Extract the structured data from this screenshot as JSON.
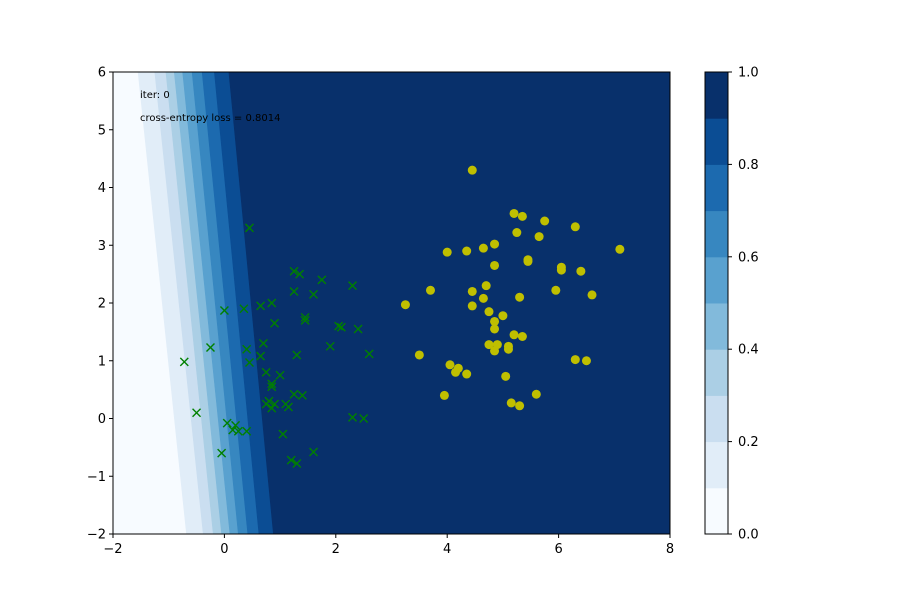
{
  "chart_data": {
    "type": "scatter",
    "xlim": [
      -2,
      8
    ],
    "ylim": [
      -2,
      6
    ],
    "xticks": [
      "−2",
      "0",
      "2",
      "4",
      "6",
      "8"
    ],
    "yticks": [
      "−2",
      "−1",
      "0",
      "1",
      "2",
      "3",
      "4",
      "5",
      "6"
    ],
    "annotations": {
      "iter": "iter: 0",
      "loss": "cross-entropy loss = 0.8014"
    },
    "contour": {
      "type": "filled-contour",
      "levels": [
        0.0,
        0.1,
        0.2,
        0.3,
        0.4,
        0.5,
        0.6,
        0.7,
        0.8,
        0.9,
        1.0
      ],
      "colors": [
        "#f7fbff",
        "#e1edf8",
        "#cadef0",
        "#abcfe5",
        "#82badb",
        "#59a1cf",
        "#3787c0",
        "#1c6aaf",
        "#0b4d94",
        "#08306b"
      ],
      "boundary_lines": [
        {
          "level": 0.1,
          "y_min_x": -0.68,
          "y_max_x": -1.55
        },
        {
          "level": 0.2,
          "y_min_x": -0.38,
          "y_max_x": -1.25
        },
        {
          "level": 0.3,
          "y_min_x": -0.2,
          "y_max_x": -1.05
        },
        {
          "level": 0.4,
          "y_min_x": -0.05,
          "y_max_x": -0.9
        },
        {
          "level": 0.5,
          "y_min_x": 0.1,
          "y_max_x": -0.75
        },
        {
          "level": 0.6,
          "y_min_x": 0.25,
          "y_max_x": -0.58
        },
        {
          "level": 0.7,
          "y_min_x": 0.42,
          "y_max_x": -0.4
        },
        {
          "level": 0.8,
          "y_min_x": 0.62,
          "y_max_x": -0.18
        },
        {
          "level": 0.9,
          "y_min_x": 0.88,
          "y_max_x": 0.08
        }
      ]
    },
    "colorbar": {
      "range": [
        0,
        1
      ],
      "ticks": [
        "0.0",
        "0.2",
        "0.4",
        "0.6",
        "0.8",
        "1.0"
      ]
    },
    "series": [
      {
        "marker": "x",
        "color": "#008000",
        "points": [
          [
            0.45,
            3.3
          ],
          [
            1.25,
            2.55
          ],
          [
            1.35,
            2.5
          ],
          [
            1.75,
            2.4
          ],
          [
            1.25,
            2.2
          ],
          [
            1.6,
            2.15
          ],
          [
            2.3,
            2.3
          ],
          [
            0.85,
            2.0
          ],
          [
            0.65,
            1.95
          ],
          [
            0.35,
            1.9
          ],
          [
            0.0,
            1.87
          ],
          [
            1.45,
            1.75
          ],
          [
            1.45,
            1.7
          ],
          [
            0.9,
            1.65
          ],
          [
            2.05,
            1.6
          ],
          [
            2.1,
            1.58
          ],
          [
            2.4,
            1.55
          ],
          [
            0.7,
            1.3
          ],
          [
            1.9,
            1.25
          ],
          [
            0.4,
            1.2
          ],
          [
            -0.25,
            1.23
          ],
          [
            1.3,
            1.1
          ],
          [
            0.65,
            1.08
          ],
          [
            2.6,
            1.12
          ],
          [
            0.45,
            0.97
          ],
          [
            -0.72,
            0.98
          ],
          [
            1.0,
            0.75
          ],
          [
            0.75,
            0.8
          ],
          [
            0.85,
            0.6
          ],
          [
            0.85,
            0.55
          ],
          [
            1.25,
            0.42
          ],
          [
            1.4,
            0.4
          ],
          [
            0.8,
            0.3
          ],
          [
            0.75,
            0.25
          ],
          [
            0.9,
            0.25
          ],
          [
            1.1,
            0.25
          ],
          [
            1.15,
            0.2
          ],
          [
            0.85,
            0.18
          ],
          [
            -0.5,
            0.1
          ],
          [
            2.3,
            0.02
          ],
          [
            2.5,
            0.0
          ],
          [
            0.05,
            -0.08
          ],
          [
            0.2,
            -0.12
          ],
          [
            0.15,
            -0.2
          ],
          [
            0.25,
            -0.22
          ],
          [
            0.4,
            -0.22
          ],
          [
            1.05,
            -0.27
          ],
          [
            1.6,
            -0.58
          ],
          [
            -0.05,
            -0.6
          ],
          [
            1.2,
            -0.72
          ],
          [
            1.3,
            -0.78
          ]
        ]
      },
      {
        "marker": "o",
        "color": "#bfbf00",
        "points": [
          [
            4.45,
            4.3
          ],
          [
            5.2,
            3.55
          ],
          [
            5.35,
            3.5
          ],
          [
            5.75,
            3.42
          ],
          [
            6.3,
            3.32
          ],
          [
            5.25,
            3.22
          ],
          [
            5.65,
            3.15
          ],
          [
            4.85,
            3.02
          ],
          [
            4.65,
            2.95
          ],
          [
            7.1,
            2.93
          ],
          [
            4.35,
            2.9
          ],
          [
            4.0,
            2.88
          ],
          [
            5.45,
            2.75
          ],
          [
            5.45,
            2.72
          ],
          [
            4.85,
            2.65
          ],
          [
            6.05,
            2.62
          ],
          [
            6.05,
            2.57
          ],
          [
            6.4,
            2.55
          ],
          [
            4.7,
            2.3
          ],
          [
            3.7,
            2.22
          ],
          [
            4.45,
            2.2
          ],
          [
            5.95,
            2.22
          ],
          [
            6.6,
            2.14
          ],
          [
            5.3,
            2.1
          ],
          [
            4.65,
            2.08
          ],
          [
            3.25,
            1.97
          ],
          [
            4.45,
            1.95
          ],
          [
            4.75,
            1.85
          ],
          [
            5.0,
            1.78
          ],
          [
            4.85,
            1.68
          ],
          [
            4.85,
            1.55
          ],
          [
            5.2,
            1.45
          ],
          [
            5.35,
            1.42
          ],
          [
            4.75,
            1.28
          ],
          [
            4.9,
            1.28
          ],
          [
            5.1,
            1.25
          ],
          [
            5.1,
            1.2
          ],
          [
            4.85,
            1.17
          ],
          [
            3.5,
            1.1
          ],
          [
            6.3,
            1.02
          ],
          [
            6.5,
            1.0
          ],
          [
            4.05,
            0.93
          ],
          [
            4.2,
            0.87
          ],
          [
            4.15,
            0.8
          ],
          [
            4.35,
            0.77
          ],
          [
            5.05,
            0.73
          ],
          [
            5.6,
            0.42
          ],
          [
            3.95,
            0.4
          ],
          [
            5.15,
            0.27
          ],
          [
            5.3,
            0.22
          ]
        ]
      }
    ]
  }
}
